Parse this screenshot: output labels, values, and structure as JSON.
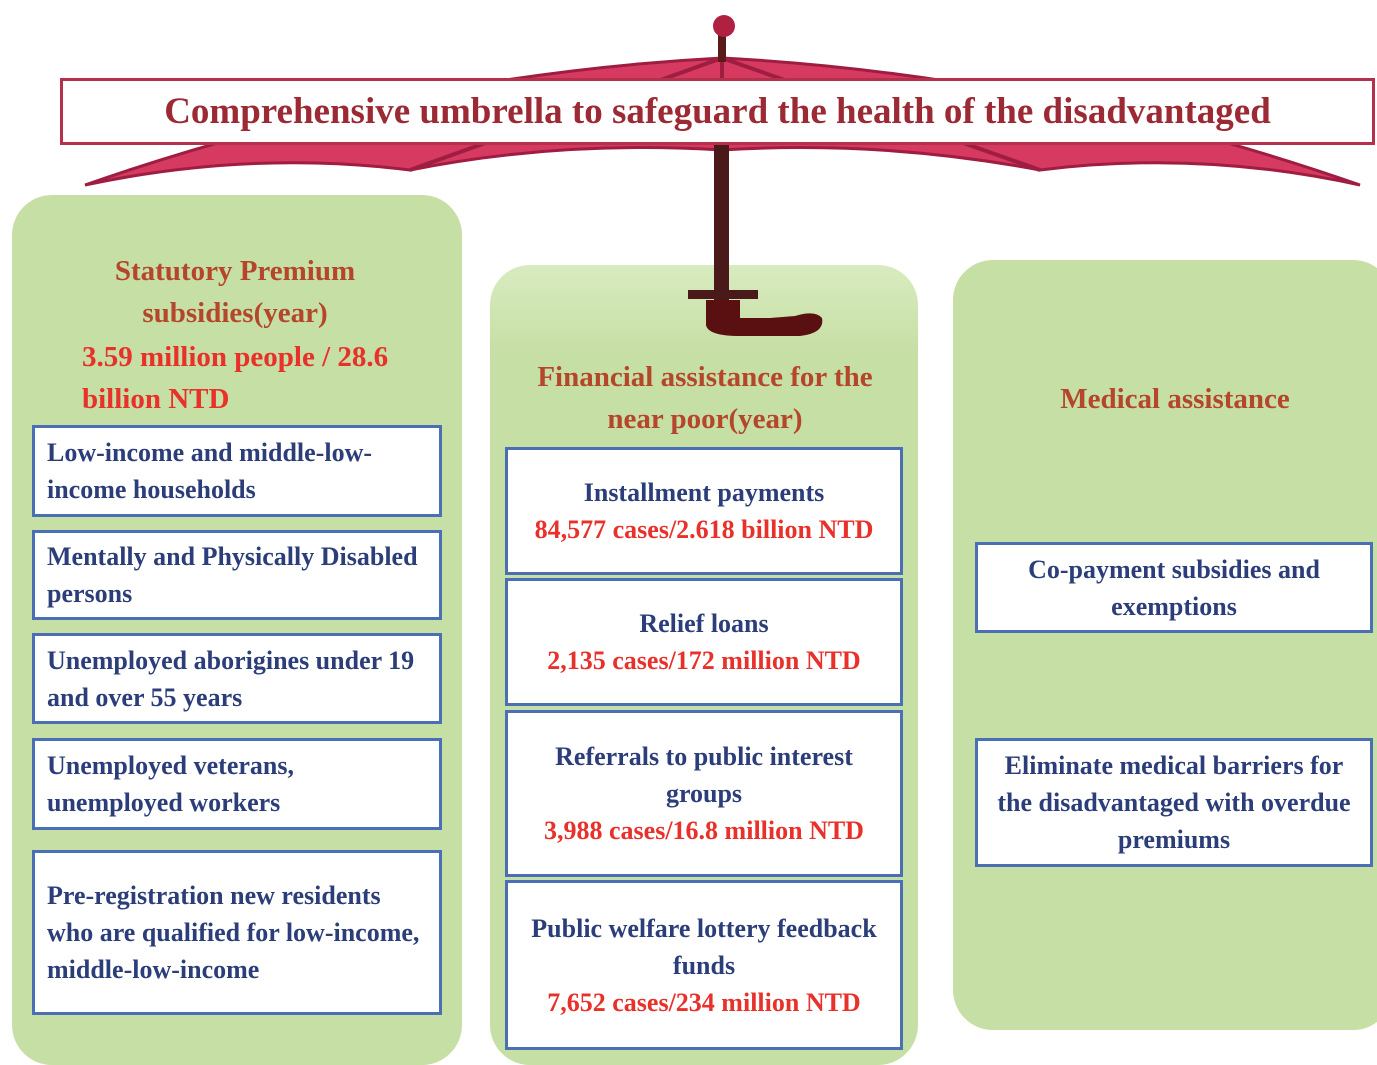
{
  "title": "Comprehensive umbrella to safeguard the health of the disadvantaged",
  "columns": [
    {
      "heading": "Statutory Premium subsidies(year)",
      "highlight": "3.59 million people / 28.6 billion NTD",
      "items": [
        {
          "label": "Low-income and middle-low-income households"
        },
        {
          "label": "Mentally and Physically Disabled persons"
        },
        {
          "label": "Unemployed aborigines under 19 and over 55 years"
        },
        {
          "label": "Unemployed veterans, unemployed workers"
        },
        {
          "label": "Pre-registration new residents who are qualified for low-income, middle-low-income"
        }
      ]
    },
    {
      "heading": "Financial assistance for the near poor(year)",
      "items": [
        {
          "label": "Installment payments",
          "stat": "84,577 cases/2.618 billion NTD"
        },
        {
          "label": "Relief loans",
          "stat": "2,135 cases/172 million NTD"
        },
        {
          "label": "Referrals to public interest groups",
          "stat": "3,988 cases/16.8 million NTD"
        },
        {
          "label": "Public welfare lottery feedback funds",
          "stat": "7,652 cases/234 million NTD"
        }
      ]
    },
    {
      "heading": "Medical assistance",
      "items": [
        {
          "label": "Co-payment subsidies and exemptions"
        },
        {
          "label": "Eliminate  medical barriers for the disadvantaged with overdue premiums"
        }
      ]
    }
  ]
}
